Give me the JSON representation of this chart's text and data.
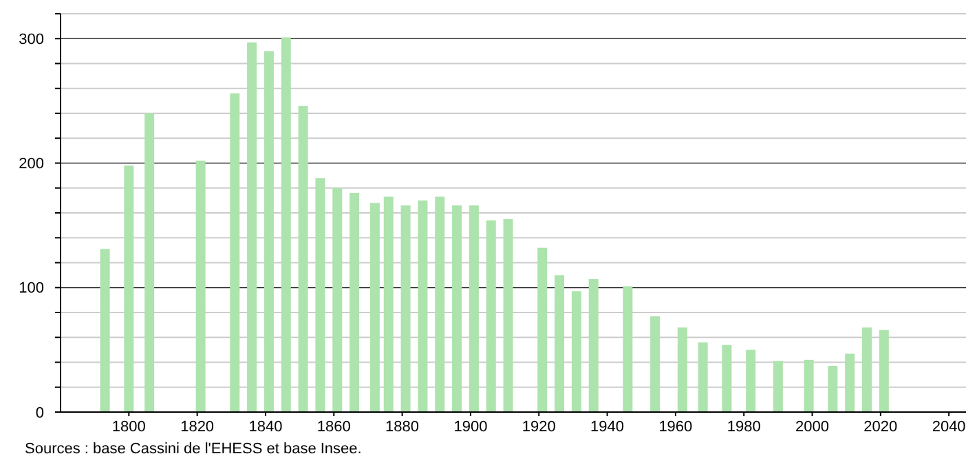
{
  "chart_data": {
    "type": "bar",
    "color": "#ade3ad",
    "x": [
      1793,
      1800,
      1806,
      1821,
      1831,
      1836,
      1841,
      1846,
      1851,
      1856,
      1861,
      1866,
      1872,
      1876,
      1881,
      1886,
      1891,
      1896,
      1901,
      1906,
      1911,
      1921,
      1926,
      1931,
      1936,
      1946,
      1954,
      1962,
      1968,
      1975,
      1982,
      1990,
      1999,
      2006,
      2011,
      2016,
      2021
    ],
    "values": [
      131,
      198,
      240,
      202,
      256,
      297,
      290,
      301,
      246,
      188,
      180,
      176,
      168,
      173,
      166,
      170,
      173,
      166,
      166,
      154,
      155,
      132,
      110,
      97,
      107,
      101,
      77,
      68,
      56,
      54,
      50,
      41,
      42,
      37,
      47,
      68,
      66
    ],
    "xlim": [
      1780,
      2045
    ],
    "xticks": [
      1800,
      1820,
      1840,
      1860,
      1880,
      1900,
      1920,
      1940,
      1960,
      1980,
      2000,
      2020,
      2040
    ],
    "ylim": [
      0,
      320
    ],
    "yticks": [
      0,
      {
        "value": 20,
        "label": null
      },
      {
        "value": 40,
        "label": null
      },
      {
        "value": 60,
        "label": null
      },
      {
        "value": 80,
        "label": null
      },
      100,
      {
        "value": 120,
        "label": null
      },
      {
        "value": 140,
        "label": null
      },
      {
        "value": 160,
        "label": null
      },
      {
        "value": 180,
        "label": null
      },
      200,
      {
        "value": 220,
        "label": null
      },
      {
        "value": 240,
        "label": null
      },
      {
        "value": 260,
        "label": null
      },
      {
        "value": 280,
        "label": null
      },
      300,
      {
        "value": 320,
        "label": null
      }
    ],
    "grid": "y",
    "annotations": [
      "Sources : base Cassini de l'EHESS et base Insee."
    ]
  }
}
